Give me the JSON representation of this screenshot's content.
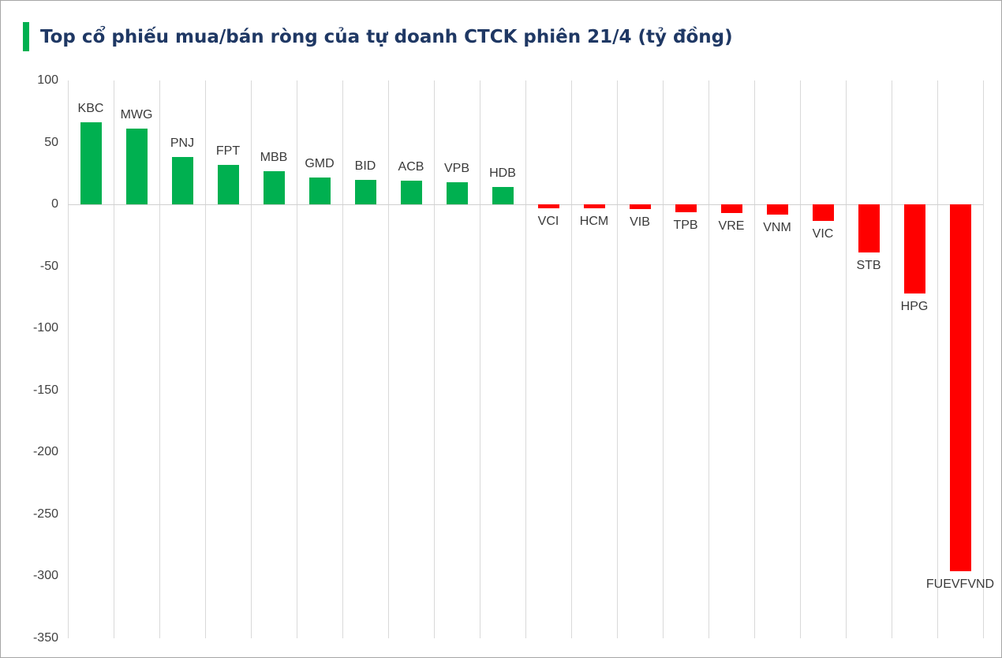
{
  "header": {
    "title": "Top cổ phiếu mua/bán ròng của tự doanh CTCK phiên 21/4 (tỷ đồng)"
  },
  "colors": {
    "positive_bar": "#00B050",
    "negative_bar": "#FF0000",
    "accent_bar": "#00B050",
    "title_text": "#1F3864",
    "gridline": "#D9D9D9",
    "axis_line": "#D0D0D0",
    "label_text": "#3a3a3a",
    "tick_text": "#404040"
  },
  "chart_data": {
    "type": "bar",
    "title": "Top cổ phiếu mua/bán ròng của tự doanh CTCK phiên 21/4 (tỷ đồng)",
    "categories": [
      "KBC",
      "MWG",
      "PNJ",
      "FPT",
      "MBB",
      "GMD",
      "BID",
      "ACB",
      "VPB",
      "HDB",
      "VCI",
      "HCM",
      "VIB",
      "TPB",
      "VRE",
      "VNM",
      "VIC",
      "STB",
      "HPG",
      "FUEVFVND"
    ],
    "values": [
      66,
      61,
      38,
      32,
      27,
      22,
      20,
      19,
      18,
      14,
      -3,
      -3,
      -4,
      -6,
      -7,
      -8,
      -13,
      -39,
      -72,
      -296
    ],
    "xlabel": "",
    "ylabel": "",
    "ylim": [
      -350,
      100
    ],
    "yticks": [
      100,
      50,
      0,
      -50,
      -100,
      -150,
      -200,
      -250,
      -300,
      -350
    ],
    "grid": "vertical-only",
    "legend": "none",
    "bar_color_rule": "positive green, negative red",
    "label_position": "outside-end"
  }
}
